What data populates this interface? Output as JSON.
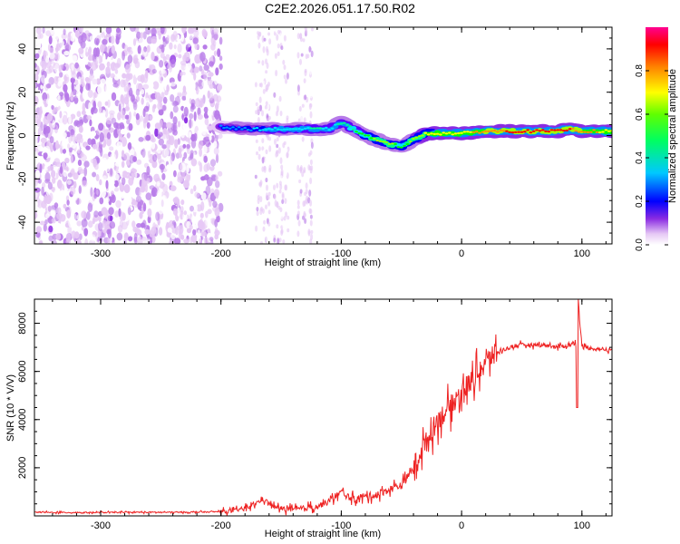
{
  "figure_title": "C2E2.2026.051.17.50.R02",
  "chart_data": [
    {
      "type": "heatmap",
      "xlabel": "Height of straight line (km)",
      "ylabel": "Frequency (Hz)",
      "xlim": [
        -355,
        125
      ],
      "ylim": [
        -50,
        50
      ],
      "xticks": [
        -300,
        -200,
        -100,
        0,
        100
      ],
      "yticks": [
        -40,
        -20,
        0,
        20,
        40
      ],
      "colorbar": {
        "label": "Normalized spectral amplitude",
        "range": [
          0,
          1
        ],
        "ticks": [
          0.0,
          0.2,
          0.4,
          0.6,
          0.8
        ],
        "tick_labels": [
          "0.0",
          "0.2",
          "0.4",
          "0.6",
          "0.8"
        ],
        "colormap": [
          "#ffffff",
          "#e6c8f5",
          "#b77ae8",
          "#8a2be2",
          "#5b00ff",
          "#0000ff",
          "#0090ff",
          "#00e0ff",
          "#00ff90",
          "#00ff00",
          "#a0ff00",
          "#ffff00",
          "#ff9000",
          "#ff0000",
          "#ff0090"
        ]
      },
      "ridge": {
        "x": [
          -200,
          -180,
          -160,
          -140,
          -120,
          -110,
          -100,
          -90,
          -80,
          -70,
          -60,
          -50,
          -40,
          -30,
          -20,
          -10,
          0,
          20,
          40,
          60,
          80,
          90,
          100,
          125
        ],
        "y": [
          4,
          3,
          3,
          3,
          3,
          3,
          6,
          3,
          0,
          -2,
          -4,
          -5,
          -2,
          1,
          1,
          1,
          1,
          2,
          2,
          2,
          2,
          3,
          2,
          2
        ],
        "amplitude": [
          0.4,
          0.45,
          0.5,
          0.5,
          0.55,
          0.5,
          0.55,
          0.6,
          0.65,
          0.7,
          0.7,
          0.65,
          0.7,
          0.75,
          0.8,
          0.8,
          0.8,
          0.85,
          0.9,
          0.92,
          0.9,
          0.9,
          0.85,
          0.8
        ]
      },
      "noise_region": {
        "x_range": [
          -355,
          -200
        ],
        "y_range": [
          -50,
          50
        ]
      }
    },
    {
      "type": "line",
      "xlabel": "Height of straight line (km)",
      "ylabel": "SNR (10 * V/V)",
      "xlim": [
        -355,
        125
      ],
      "ylim": [
        0,
        9000
      ],
      "xticks": [
        -300,
        -200,
        -100,
        0,
        100
      ],
      "yticks": [
        2000,
        4000,
        6000,
        8000
      ],
      "series": [
        {
          "color": "#ee2222",
          "x": [
            -355,
            -330,
            -300,
            -270,
            -240,
            -210,
            -190,
            -175,
            -165,
            -155,
            -140,
            -120,
            -110,
            -100,
            -95,
            -90,
            -80,
            -70,
            -60,
            -50,
            -45,
            -40,
            -35,
            -30,
            -25,
            -20,
            -10,
            0,
            10,
            20,
            30,
            40,
            50,
            60,
            70,
            80,
            90,
            95,
            97,
            100,
            110,
            125
          ],
          "y": [
            150,
            140,
            140,
            150,
            150,
            160,
            200,
            400,
            700,
            350,
            250,
            400,
            600,
            1000,
            800,
            700,
            800,
            900,
            1100,
            1300,
            1600,
            2000,
            2600,
            3000,
            3500,
            4000,
            4500,
            5200,
            5700,
            6400,
            6800,
            7000,
            7100,
            7100,
            7100,
            7000,
            7100,
            7200,
            9000,
            7000,
            6950,
            6900
          ]
        }
      ]
    }
  ]
}
